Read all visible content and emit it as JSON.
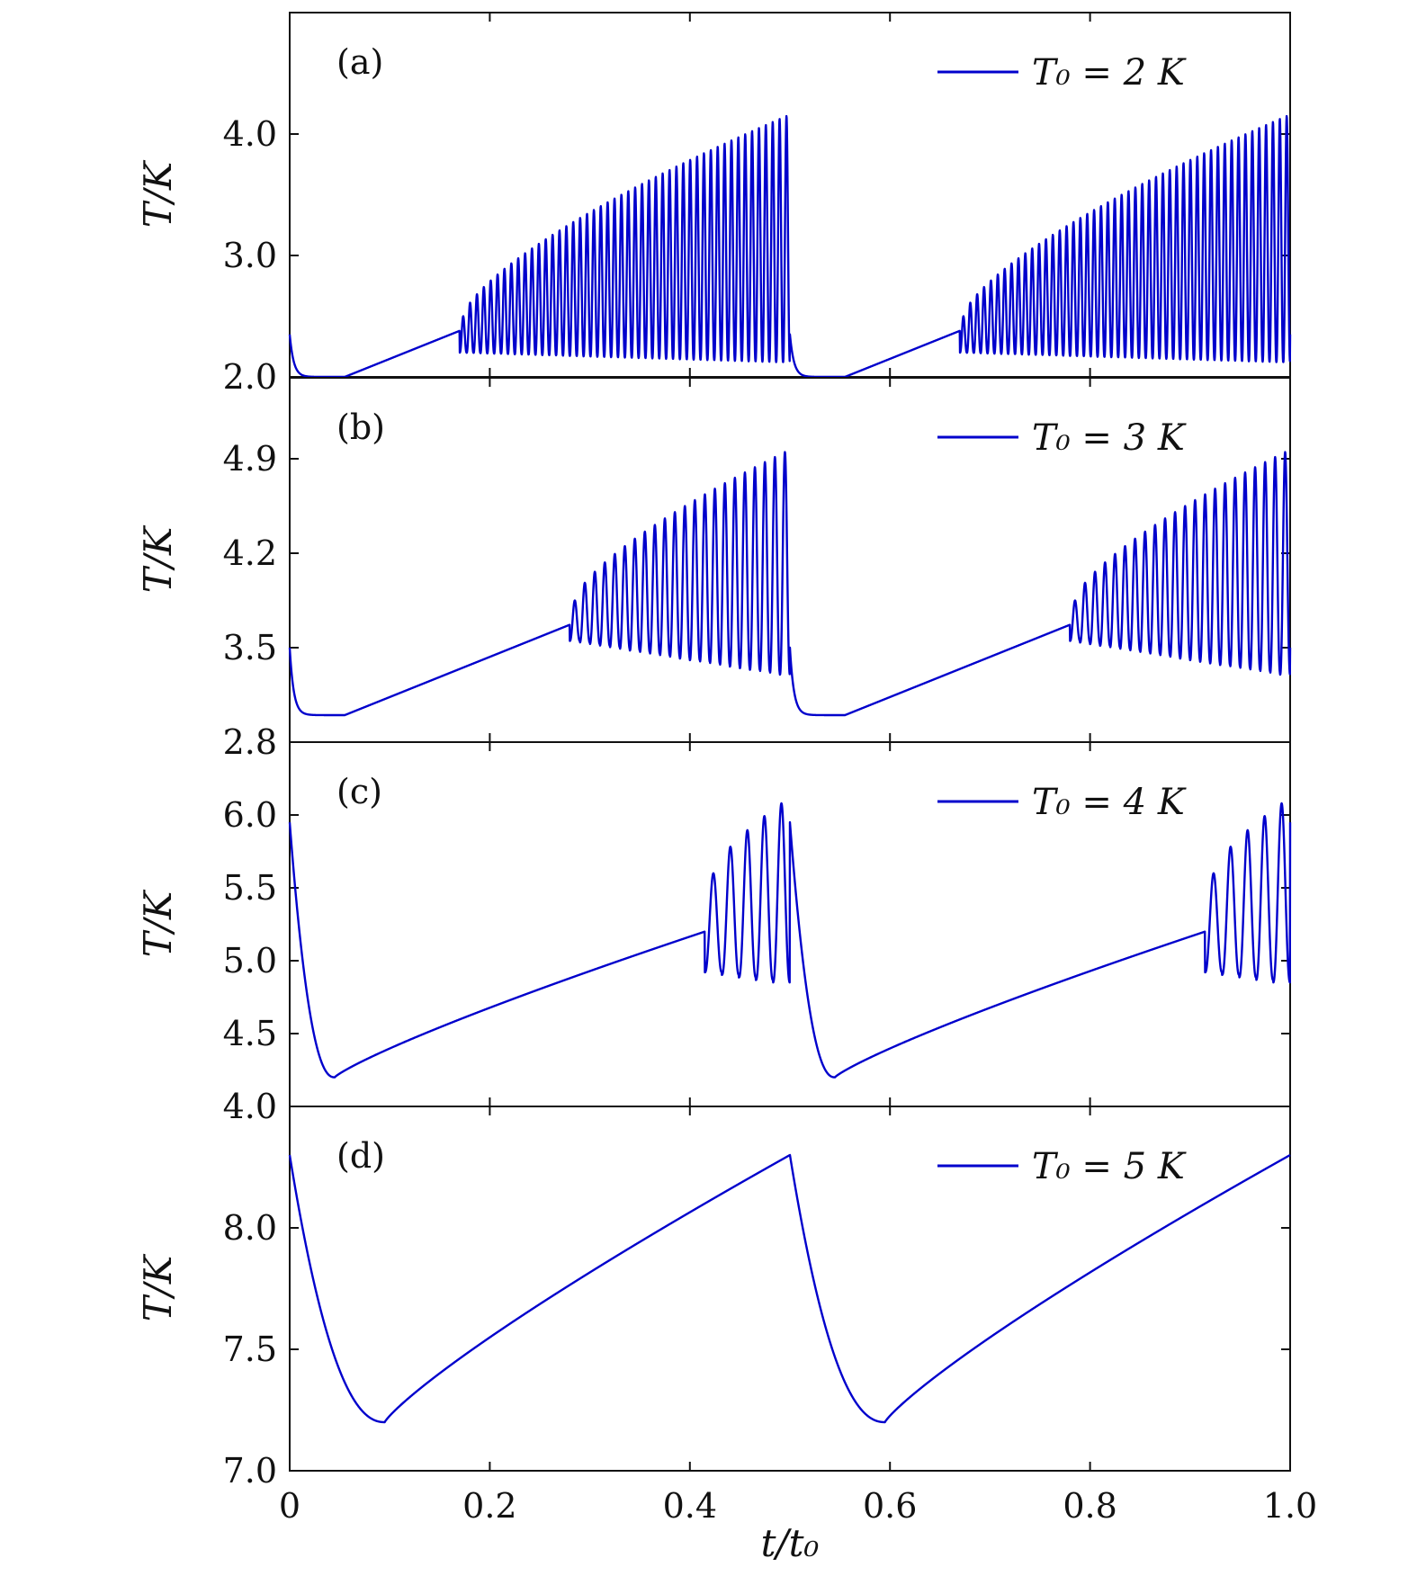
{
  "figure": {
    "xlabel": "t/t₀",
    "x_ticks": [
      "0",
      "0.2",
      "0.4",
      "0.6",
      "0.8",
      "1.0"
    ],
    "line_color": "#0000cc"
  },
  "chart_data": [
    {
      "type": "line",
      "panel_label": "(a)",
      "legend": "T₀ = 2 K",
      "ylabel": "T/K",
      "xlim": [
        0,
        1
      ],
      "ylim": [
        2.0,
        5.0
      ],
      "y_ticks": [
        2.0,
        3.0,
        4.0
      ],
      "y_tick_labels": [
        "2.0",
        "3.0",
        "4.0"
      ],
      "params": {
        "base": 2.0,
        "drop": 0.35,
        "tauDrop": 0.004,
        "plateauEnd": 0.055,
        "rampStart": 2.0,
        "rampEnd": 2.38,
        "oscStart": 0.17,
        "end": 0.5,
        "tail": 0.006,
        "nOsc": 48,
        "peakStart": 2.5,
        "peakEnd": 4.15,
        "troughStart": 2.2,
        "troughEnd": 2.12,
        "decay": 0
      }
    },
    {
      "type": "line",
      "panel_label": "(b)",
      "legend": "T₀ = 3 K",
      "ylabel": "T/K",
      "xlim": [
        0,
        1
      ],
      "ylim": [
        2.8,
        5.5
      ],
      "y_ticks": [
        2.8,
        3.5,
        4.2,
        4.9
      ],
      "y_tick_labels": [
        "2.8",
        "3.5",
        "4.2",
        "4.9"
      ],
      "params": {
        "base": 3.0,
        "drop": 0.5,
        "tauDrop": 0.004,
        "plateauEnd": 0.055,
        "rampStart": 3.0,
        "rampEnd": 3.67,
        "oscStart": 0.28,
        "end": 0.5,
        "tail": 0.008,
        "nOsc": 22,
        "peakStart": 3.85,
        "peakEnd": 4.95,
        "troughStart": 3.55,
        "troughEnd": 3.3,
        "decay": 0
      }
    },
    {
      "type": "line",
      "panel_label": "(c)",
      "legend": "T₀ = 4 K",
      "ylabel": "T/K",
      "xlim": [
        0,
        1
      ],
      "ylim": [
        4.0,
        6.5
      ],
      "y_ticks": [
        4.0,
        4.5,
        5.0,
        5.5,
        6.0
      ],
      "y_tick_labels": [
        "4.0",
        "4.5",
        "5.0",
        "5.5",
        "6.0"
      ],
      "params": {
        "base": 4.2,
        "drop": 1.75,
        "tauDrop": 0.016,
        "min": 4.2,
        "minX": 0.045,
        "rampEnd": 5.2,
        "oscStart": 0.415,
        "end": 0.5,
        "tail": 0.01,
        "nOsc": 5,
        "peakStart": 5.6,
        "peakEnd": 6.08,
        "troughStart": 4.92,
        "troughEnd": 4.85,
        "decay": 1
      }
    },
    {
      "type": "line",
      "panel_label": "(d)",
      "legend": "T₀ = 5 K",
      "ylabel": "T/K",
      "xlim": [
        0,
        1
      ],
      "ylim": [
        7.0,
        8.5
      ],
      "y_ticks": [
        7.0,
        7.5,
        8.0
      ],
      "y_tick_labels": [
        "7.0",
        "7.5",
        "8.0"
      ],
      "params": {
        "base": 7.2,
        "peak": 8.3,
        "minX": 0.095,
        "end": 0.5,
        "tail": 0.004,
        "decay": 2
      }
    }
  ]
}
